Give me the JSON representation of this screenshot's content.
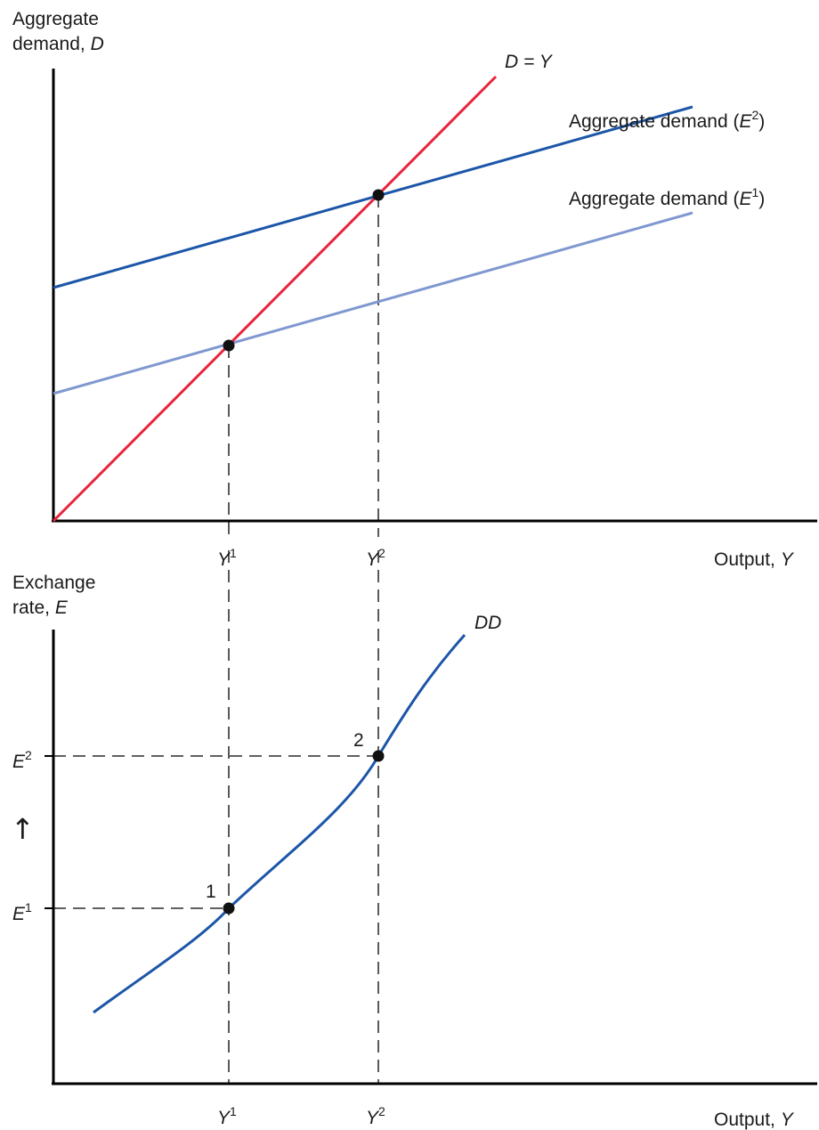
{
  "colors": {
    "dy_line": "#e8243c",
    "ad_e2": "#1c56a8",
    "ad_e1": "#8098d0",
    "dd_curve": "#1c56a8",
    "axis": "#000000",
    "point": "#111111"
  },
  "top_panel": {
    "y_axis_label_line1": "Aggregate",
    "y_axis_label_line2_text": "demand, ",
    "y_axis_label_line2_var": "D",
    "x_axis_label_text": "Output, ",
    "x_axis_label_var": "Y",
    "dy_label": "D = Y",
    "ad_e2_label_text": "Aggregate demand (",
    "ad_e2_label_var": "E",
    "ad_e2_label_sup": "2",
    "ad_e2_label_close": ")",
    "ad_e1_label_text": "Aggregate demand (",
    "ad_e1_label_var": "E",
    "ad_e1_label_sup": "1",
    "ad_e1_label_close": ")",
    "tick_y1_var": "Y",
    "tick_y1_sup": "1",
    "tick_y2_var": "Y",
    "tick_y2_sup": "2"
  },
  "bottom_panel": {
    "y_axis_label_line1": "Exchange",
    "y_axis_label_line2_text": "rate, ",
    "y_axis_label_line2_var": "E",
    "x_axis_label_text": "Output, ",
    "x_axis_label_var": "Y",
    "curve_label": "DD",
    "tick_e2_var": "E",
    "tick_e2_sup": "2",
    "tick_e1_var": "E",
    "tick_e1_sup": "1",
    "arrow_glyph": "↑",
    "point1_label": "1",
    "point2_label": "2",
    "tick_y1_var": "Y",
    "tick_y1_sup": "1",
    "tick_y2_var": "Y",
    "tick_y2_sup": "2"
  }
}
